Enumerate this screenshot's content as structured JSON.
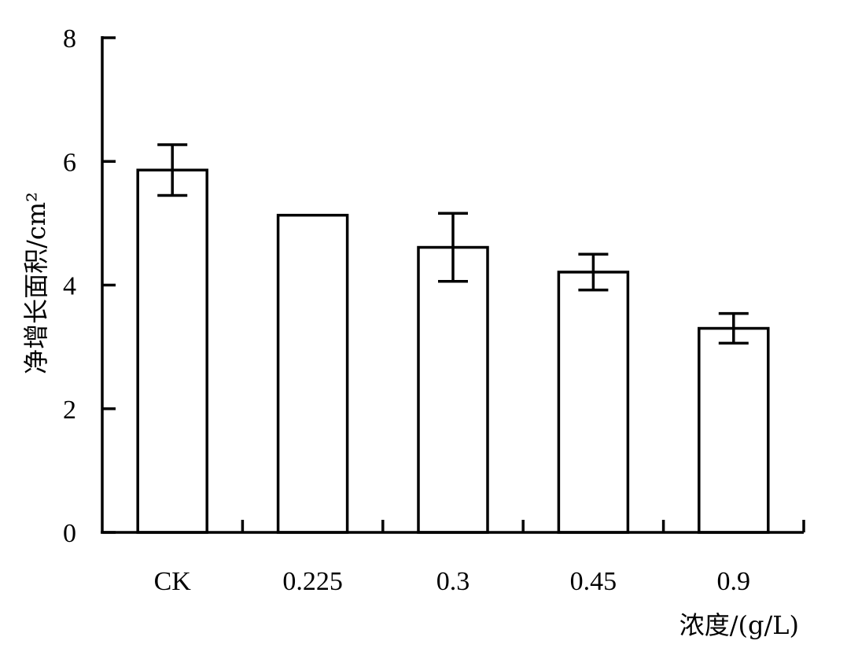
{
  "chart_data": {
    "type": "bar",
    "categories": [
      "CK",
      "0.225",
      "0.3",
      "0.45",
      "0.9"
    ],
    "values": [
      5.86,
      5.13,
      4.61,
      4.21,
      3.3
    ],
    "error": [
      0.41,
      0,
      0.55,
      0.29,
      0.24
    ],
    "ylabel": "净增长面积/cm²",
    "xlabel": "浓度/(g/L)",
    "ylim": [
      0,
      8
    ],
    "yticks": [
      0,
      2,
      4,
      6,
      8
    ],
    "grid": false,
    "legend": "none",
    "colors": {
      "bar_fill": "#ffffff",
      "bar_stroke": "#000000",
      "axis": "#000000"
    }
  }
}
